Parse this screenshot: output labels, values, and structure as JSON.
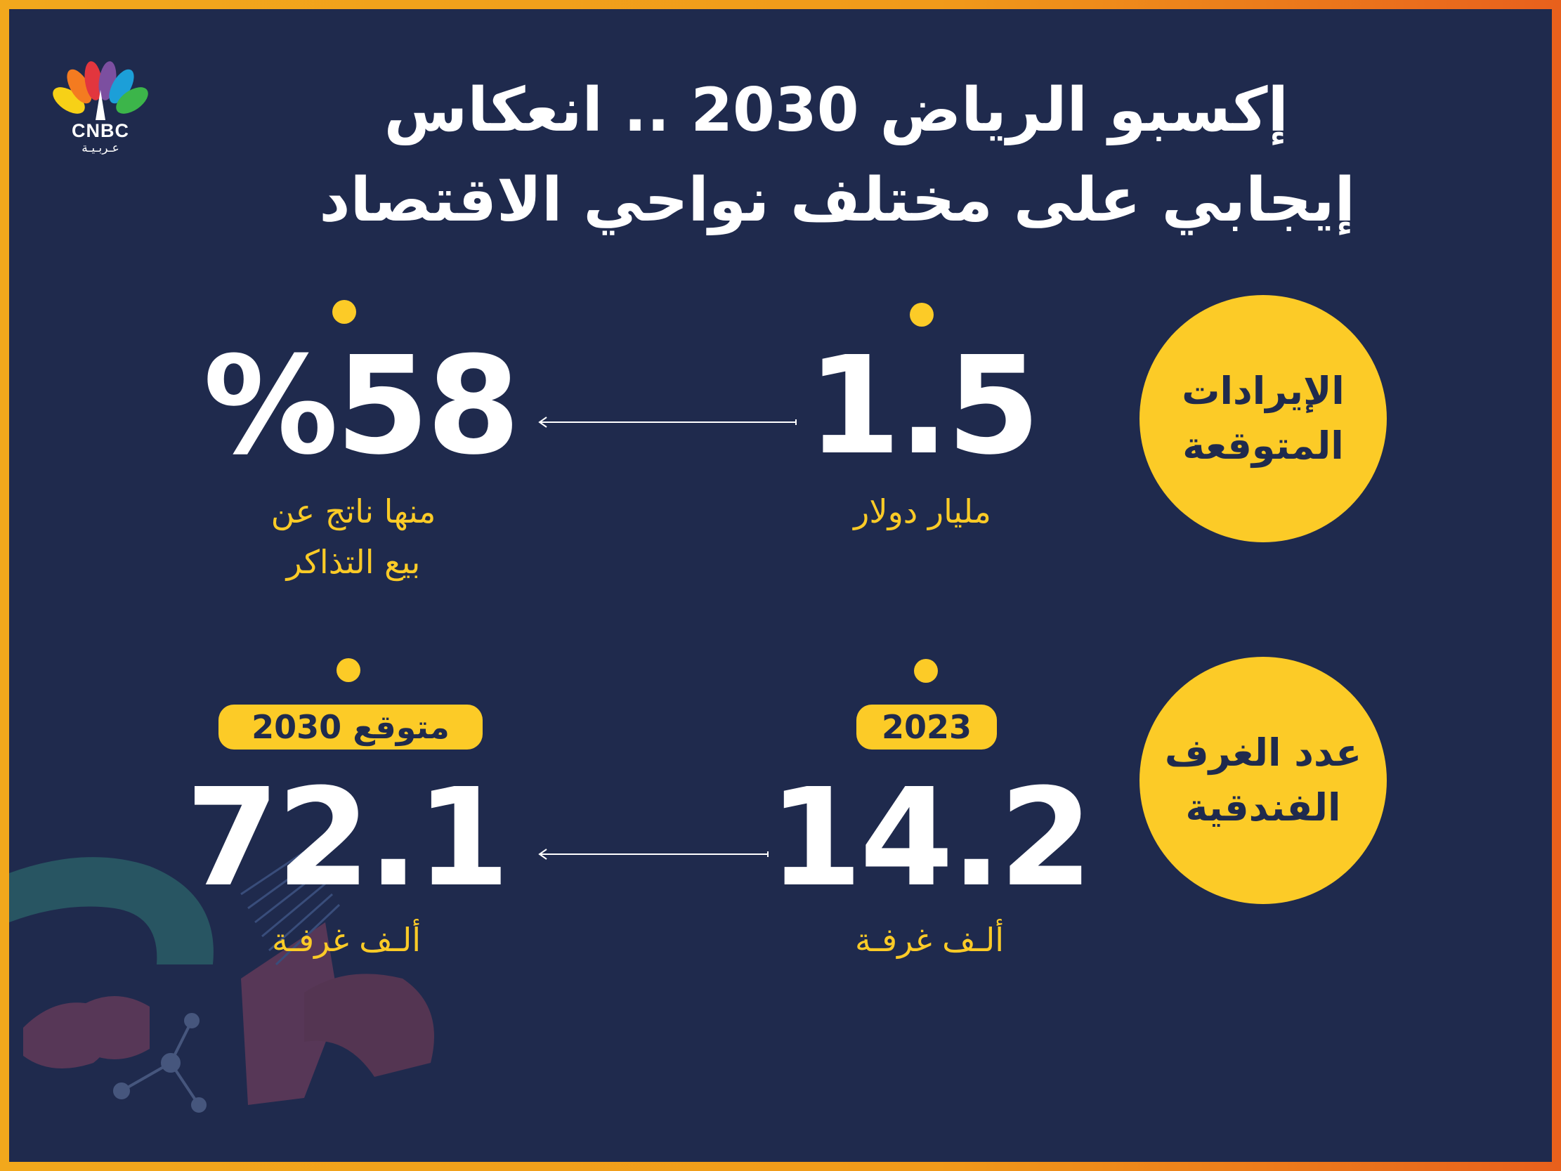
{
  "brand": {
    "logo_text": "CNBC",
    "logo_sub": "عـربـيـة",
    "peacock_colors": [
      "#f7d117",
      "#f47b20",
      "#e2363e",
      "#7c4fa0",
      "#1c9fd8",
      "#3cb54a"
    ]
  },
  "title": {
    "line1": "إكسبو الرياض 2030 .. انعكاس",
    "line2": "إيجابي على مختلف نواحي الاقتصاد"
  },
  "colors": {
    "background": "#1f2a4d",
    "accent": "#fccb27",
    "frame": "#f2a81c"
  },
  "revenue": {
    "label_line1": "الإيرادات",
    "label_line2": "المتوقعة",
    "value": "1.5",
    "unit": "مليار دولار",
    "share_value": "%58",
    "share_line1": "منها ناتج عن",
    "share_line2": "بيع التذاكر"
  },
  "hotels": {
    "label_line1": "عدد الغرف",
    "label_line2": "الفندقية",
    "current_year": "2023",
    "current_value": "14.2",
    "current_unit": "ألـف غرفـة",
    "expected_label": "متوقع 2030",
    "expected_value": "72.1",
    "expected_unit": "ألـف غرفـة"
  }
}
